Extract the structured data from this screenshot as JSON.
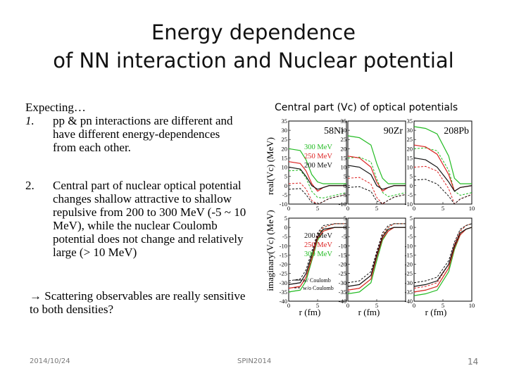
{
  "slide": {
    "title_line1": "Energy dependence",
    "title_line2": "of NN interaction and Nuclear potential",
    "expecting": "Expecting…",
    "item1_num": "1.",
    "item1_text": "pp & pn interactions are different and have different energy-dependences from each other.",
    "item2_num": "2.",
    "item2_text": "Central part of nuclear optical potential changes shallow attractive to shallow repulsive from 200 to 300 MeV (-5 ~ 10 MeV), while the nuclear Coulomb potential does not change and relatively large (> 10 MeV)",
    "arrow_text": "→ Scattering observables are really sensitive to both densities?",
    "plot_caption": "Central part (Vc) of optical potentials",
    "footer_date": "2014/10/24",
    "footer_event": "SPIN2014",
    "page_number": "14"
  },
  "figure": {
    "ylabel_top": "real(Vc) (MeV)",
    "ylabel_bottom": "imaginary(Vc) (MeV)",
    "xlabel": "r (fm)",
    "nuclei": [
      "58Ni",
      "90Zr",
      "208Pb"
    ],
    "legend_energies": [
      "300 MeV",
      "250 MeV",
      "200 MeV"
    ],
    "legend_energies_bottom": [
      "200 MeV",
      "250 MeV",
      "300 MeV"
    ],
    "legend_coulomb": [
      "w/ Coulomb",
      "w/o Coulomb"
    ],
    "colors": {
      "300 MeV": "#22bb22",
      "250 MeV": "#dd2222",
      "200 MeV": "#111111"
    }
  },
  "chart_data": {
    "type": "line",
    "xlabel": "r (fm)",
    "x_range": [
      0,
      10
    ],
    "panels": [
      {
        "row": "real",
        "nucleus": "58Ni",
        "ylim": [
          -10,
          35
        ],
        "series": [
          {
            "name": "300 MeV",
            "x": [
              0,
              2,
              3,
              4,
              5,
              6,
              7,
              8,
              10
            ],
            "y": [
              20,
              19,
              14,
              6,
              2,
              1,
              1,
              1,
              1
            ]
          },
          {
            "name": "250 MeV",
            "x": [
              0,
              2,
              3,
              4,
              5,
              6,
              7,
              8,
              10
            ],
            "y": [
              13,
              12,
              8,
              1,
              -3,
              -1,
              0,
              0,
              0
            ]
          },
          {
            "name": "200 MeV",
            "x": [
              0,
              2,
              3,
              4,
              5,
              6,
              7,
              8,
              10
            ],
            "y": [
              10,
              9,
              5,
              0,
              -2,
              -1,
              0,
              0,
              0
            ]
          }
        ]
      },
      {
        "row": "real",
        "nucleus": "90Zr",
        "ylim": [
          -10,
          35
        ],
        "series": [
          {
            "name": "300 MeV",
            "x": [
              0,
              2,
              4,
              5,
              6,
              7,
              8,
              10
            ],
            "y": [
              27,
              26,
              22,
              12,
              4,
              1,
              1,
              1
            ]
          },
          {
            "name": "250 MeV",
            "x": [
              0,
              2,
              4,
              5,
              6,
              7,
              8,
              10
            ],
            "y": [
              16,
              15,
              10,
              2,
              -3,
              -1,
              0,
              0
            ]
          },
          {
            "name": "200 MeV",
            "x": [
              0,
              2,
              4,
              5,
              6,
              7,
              8,
              10
            ],
            "y": [
              11,
              10,
              6,
              0,
              -2,
              -1,
              0,
              0
            ]
          }
        ]
      },
      {
        "row": "real",
        "nucleus": "208Pb",
        "ylim": [
          -10,
          35
        ],
        "series": [
          {
            "name": "300 MeV",
            "x": [
              0,
              2,
              4,
              6,
              7,
              8,
              10
            ],
            "y": [
              32,
              31,
              28,
              16,
              4,
              1,
              1
            ]
          },
          {
            "name": "250 MeV",
            "x": [
              0,
              2,
              4,
              6,
              7,
              8,
              10
            ],
            "y": [
              22,
              21,
              17,
              6,
              -3,
              -1,
              0
            ]
          },
          {
            "name": "200 MeV",
            "x": [
              0,
              2,
              4,
              6,
              7,
              8,
              10
            ],
            "y": [
              15,
              14,
              10,
              2,
              -3,
              -1,
              0
            ]
          }
        ]
      },
      {
        "row": "imaginary",
        "nucleus": "58Ni",
        "ylim": [
          -40,
          5
        ],
        "series": [
          {
            "name": "300 MeV",
            "x": [
              0,
              2,
              3,
              4,
              5,
              6,
              8,
              10
            ],
            "y": [
              -35,
              -34,
              -29,
              -18,
              -7,
              -2,
              0,
              0
            ]
          },
          {
            "name": "250 MeV",
            "x": [
              0,
              2,
              3,
              4,
              5,
              6,
              8,
              10
            ],
            "y": [
              -33,
              -32,
              -27,
              -17,
              -6,
              -2,
              0,
              0
            ]
          },
          {
            "name": "200 MeV",
            "x": [
              0,
              2,
              3,
              4,
              5,
              6,
              8,
              10
            ],
            "y": [
              -31,
              -30,
              -25,
              -15,
              -5,
              -1,
              0,
              0
            ]
          }
        ]
      },
      {
        "row": "imaginary",
        "nucleus": "90Zr",
        "ylim": [
          -40,
          5
        ],
        "series": [
          {
            "name": "300 MeV",
            "x": [
              0,
              2,
              4,
              5,
              6,
              7,
              8,
              10
            ],
            "y": [
              -36,
              -35,
              -30,
              -18,
              -7,
              -2,
              0,
              0
            ]
          },
          {
            "name": "250 MeV",
            "x": [
              0,
              2,
              4,
              5,
              6,
              7,
              8,
              10
            ],
            "y": [
              -34,
              -33,
              -28,
              -16,
              -6,
              -2,
              0,
              0
            ]
          },
          {
            "name": "200 MeV",
            "x": [
              0,
              2,
              4,
              5,
              6,
              7,
              8,
              10
            ],
            "y": [
              -32,
              -31,
              -26,
              -15,
              -5,
              -1,
              0,
              0
            ]
          }
        ]
      },
      {
        "row": "imaginary",
        "nucleus": "208Pb",
        "ylim": [
          -40,
          5
        ],
        "series": [
          {
            "name": "300 MeV",
            "x": [
              0,
              2,
              4,
              6,
              7,
              8,
              9,
              10
            ],
            "y": [
              -37,
              -36,
              -34,
              -24,
              -12,
              -4,
              -1,
              0
            ]
          },
          {
            "name": "250 MeV",
            "x": [
              0,
              2,
              4,
              6,
              7,
              8,
              9,
              10
            ],
            "y": [
              -35,
              -34,
              -32,
              -22,
              -11,
              -4,
              -1,
              0
            ]
          },
          {
            "name": "200 MeV",
            "x": [
              0,
              2,
              4,
              6,
              7,
              8,
              9,
              10
            ],
            "y": [
              -32,
              -31,
              -29,
              -20,
              -10,
              -3,
              -1,
              0
            ]
          }
        ]
      }
    ]
  }
}
